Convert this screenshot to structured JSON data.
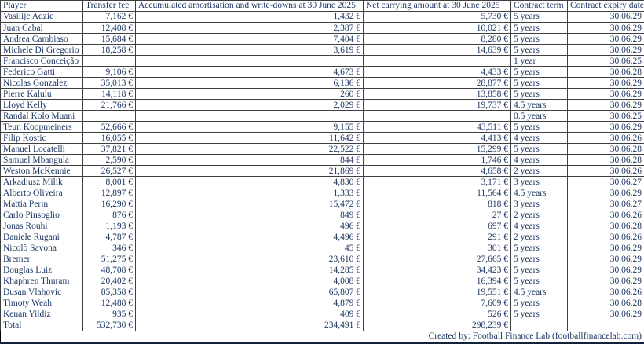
{
  "colors": {
    "text": "#1f3864",
    "grid": "#3f3f3f",
    "outer_border": "#000000",
    "bottom_bar": "#14213a",
    "background": "#ffffff"
  },
  "table": {
    "columns": [
      "Player",
      "Transfer fee",
      "Accumulated amortisation and write-downs at 30 June 2025",
      "Net carrying amount at 30 June 2025",
      "Contract term",
      "Contract expiry date"
    ],
    "rows": [
      [
        "Vasilije Adzic",
        "7,162 €",
        "1,432 €",
        "5,730 €",
        "5 years",
        "30.06.29"
      ],
      [
        "Juan Cabal",
        "12,408 €",
        "2,387 €",
        "10,021 €",
        "5 years",
        "30.06.29"
      ],
      [
        "Andrea Cambiaso",
        "15,684 €",
        "7,404 €",
        "8,280 €",
        "5 years",
        "30.06.29"
      ],
      [
        "Michele Di Gregorio",
        "18,258 €",
        "3,619 €",
        "14,639 €",
        "5 years",
        "30.06.29"
      ],
      [
        "Francisco Conceição",
        "",
        "",
        "",
        "1 year",
        "30.06.25"
      ],
      [
        "Federico Gatti",
        "9,106 €",
        "4,673 €",
        "4,433 €",
        "5 years",
        "30.06.28"
      ],
      [
        "Nicolas Gonzalez",
        "35,013 €",
        "6,136 €",
        "28,877 €",
        "5 years",
        "30.06.29"
      ],
      [
        "Pierre Kalulu",
        "14,118 €",
        "260 €",
        "13,858 €",
        "5 years",
        "30.06.29"
      ],
      [
        "Lloyd Kelly",
        "21,766 €",
        "2,029 €",
        "19,737 €",
        "4.5 years",
        "30.06.29"
      ],
      [
        "Randal Kolo Muani",
        "",
        "",
        "",
        "0.5 years",
        "30.06.25"
      ],
      [
        "Teun Koopmeiners",
        "52,666 €",
        "9,155 €",
        "43,511 €",
        "5 years",
        "30.06.29"
      ],
      [
        "Filip Kostic",
        "16,055 €",
        "11,642 €",
        "4,413 €",
        "4 years",
        "30.06.26"
      ],
      [
        "Manuel Locatelli",
        "37,821 €",
        "22,522 €",
        "15,299 €",
        "5 years",
        "30.06.28"
      ],
      [
        "Samuel Mbangula",
        "2,590 €",
        "844 €",
        "1,746 €",
        "4 years",
        "30.06.28"
      ],
      [
        "Weston McKennie",
        "26,527 €",
        "21,869 €",
        "4,658 €",
        "2 years",
        "30.06.26"
      ],
      [
        "Arkadiusz Milik",
        "8,001 €",
        "4,830 €",
        "3,171 €",
        "3 years",
        "30.06.27"
      ],
      [
        "Alberto Oliveira",
        "12,897 €",
        "1,333 €",
        "11,564 €",
        "4.5 years",
        "30.06.29"
      ],
      [
        "Mattia Perin",
        "16,290 €",
        "15,472 €",
        "818 €",
        "3 years",
        "30.06.27"
      ],
      [
        "Carlo Pinsoglio",
        "876 €",
        "849 €",
        "27 €",
        "2 years",
        "30.06.26"
      ],
      [
        "Jonas Rouhi",
        "1,193 €",
        "496 €",
        "697 €",
        "4 years",
        "30.06.28"
      ],
      [
        "Daniele Rugani",
        "4,787 €",
        "4,496 €",
        "291 €",
        "2 years",
        "30.06.26"
      ],
      [
        "Nicolò Savona",
        "346 €",
        "45 €",
        "301 €",
        "5 years",
        "30.06.29"
      ],
      [
        "Bremer",
        "51,275 €",
        "23,610 €",
        "27,665 €",
        "5 years",
        "30.06.29"
      ],
      [
        "Douglas Luiz",
        "48,708 €",
        "14,285 €",
        "34,423 €",
        "5 years",
        "30.06.29"
      ],
      [
        "Khaphren Thuram",
        "20,402 €",
        "4,008 €",
        "16,394 €",
        "5 years",
        "30.06.29"
      ],
      [
        "Dusan Vlahovic",
        "85,358 €",
        "65,807 €",
        "19,551 €",
        "4.5 years",
        "30.06.26"
      ],
      [
        "Timoty Weah",
        "12,488 €",
        "4,879 €",
        "7,609 €",
        "5 years",
        "30.06.28"
      ],
      [
        "Kenan Yildiz",
        "935 €",
        "409 €",
        "526 €",
        "5 years",
        "30.06.29"
      ]
    ],
    "total_row": [
      "Total",
      "532,730 €",
      "234,491 €",
      "298,239 €",
      "",
      ""
    ],
    "footer": "Created by: Football Finance Lab (footballfinancelab.com)"
  }
}
